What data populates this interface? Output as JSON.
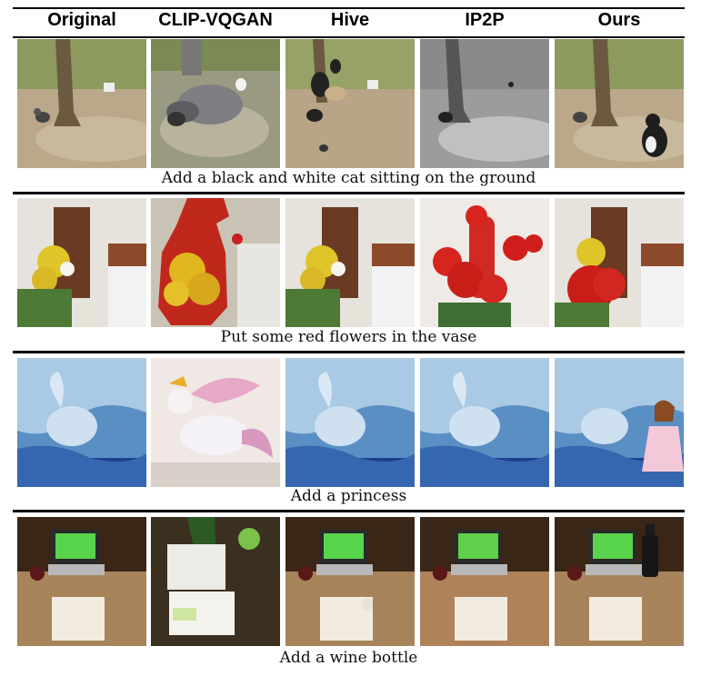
{
  "headers": [
    "Original",
    "CLIP-VQGAN",
    "Hive",
    "IP2P",
    "Ours"
  ],
  "rows": [
    {
      "caption": "Add a black and white cat sitting on the ground"
    },
    {
      "caption": "Put some red flowers in the vase"
    },
    {
      "caption": "Add a princess"
    },
    {
      "caption": "Add a wine bottle"
    }
  ]
}
